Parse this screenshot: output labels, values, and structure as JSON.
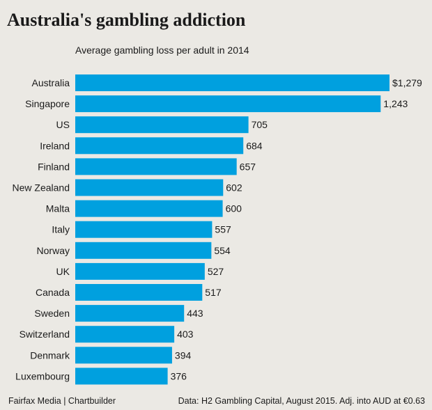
{
  "title": "Australia's gambling addiction",
  "subtitle": "Average gambling loss per adult in 2014",
  "footer": {
    "credit": "Fairfax Media | Chartbuilder",
    "source": "Data: H2 Gambling Capital, August 2015. Adj. into AUD at €0.63"
  },
  "colors": {
    "bar": "#00a0df",
    "background": "#ebe9e4"
  },
  "chart_data": {
    "type": "bar",
    "orientation": "horizontal",
    "title": "Australia's gambling addiction",
    "subtitle": "Average gambling loss per adult in 2014",
    "categories": [
      "Australia",
      "Singapore",
      "US",
      "Ireland",
      "Finland",
      "New Zealand",
      "Malta",
      "Italy",
      "Norway",
      "UK",
      "Canada",
      "Sweden",
      "Switzerland",
      "Denmark",
      "Luxembourg"
    ],
    "values": [
      1279,
      1243,
      705,
      684,
      657,
      602,
      600,
      557,
      554,
      527,
      517,
      443,
      403,
      394,
      376
    ],
    "value_labels": [
      "$1,279",
      "1,243",
      "705",
      "684",
      "657",
      "602",
      "600",
      "557",
      "554",
      "527",
      "517",
      "443",
      "403",
      "394",
      "376"
    ],
    "xlim": [
      0,
      1279
    ],
    "grid": false,
    "legend": "none"
  }
}
